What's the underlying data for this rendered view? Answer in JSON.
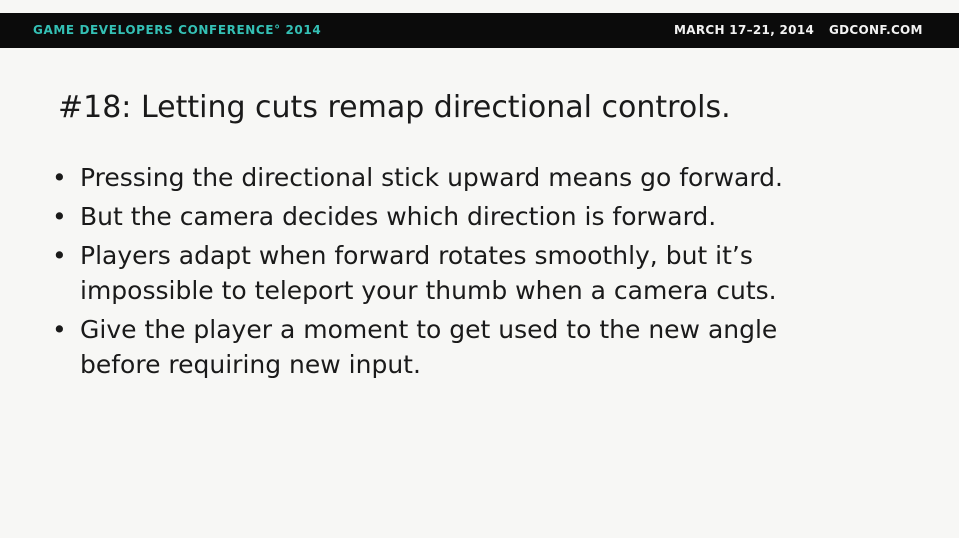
{
  "banner": {
    "conference": "GAME DEVELOPERS CONFERENCE° 2014",
    "dates": "MARCH 17–21, 2014",
    "site": "GDCONF.COM"
  },
  "slide": {
    "title": "#18: Letting cuts remap directional controls.",
    "bullet_glyph": "•",
    "bullets": [
      {
        "lines": [
          "Pressing the directional stick upward means go forward."
        ]
      },
      {
        "lines": [
          "But the camera decides which direction is forward."
        ]
      },
      {
        "lines": [
          "Players adapt when forward rotates smoothly, but it’s",
          "impossible to teleport your thumb when a camera cuts."
        ]
      },
      {
        "lines": [
          "Give the player a moment to get used to the new angle",
          "before requiring new input."
        ]
      }
    ]
  }
}
